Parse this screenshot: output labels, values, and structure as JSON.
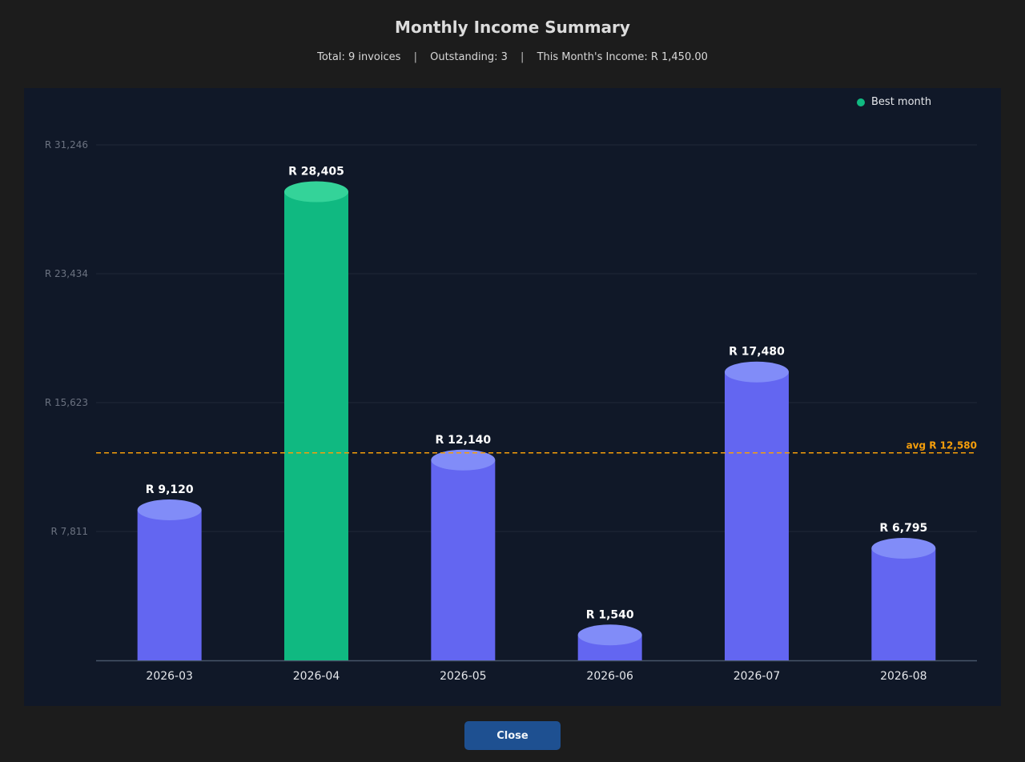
{
  "header": {
    "title": "Monthly Income Summary",
    "total_text": "Total: 9 invoices",
    "separator": "|",
    "outstanding_text": "Outstanding: 3",
    "month_income_text": "This Month's Income: R 1,450.00"
  },
  "footer": {
    "close_label": "Close"
  },
  "colors": {
    "background": "#1c1c1c",
    "panel": "#101828",
    "bar": "#6366f1",
    "bar_top": "#818cf8",
    "best_bar": "#10b981",
    "best_bar_top": "#34d399",
    "average_line": "#f59e0b",
    "gridline": "#1f2937",
    "axis_tick_text": "#6b7280",
    "category_text": "#e5e7eb"
  },
  "chart_data": {
    "type": "bar",
    "title": "Monthly Income Summary",
    "categories": [
      "2026-03",
      "2026-04",
      "2026-05",
      "2026-06",
      "2026-07",
      "2026-08"
    ],
    "values": [
      9120,
      28405,
      12140,
      1540,
      17480,
      6795
    ],
    "value_labels": [
      "R 9,120",
      "R 28,405",
      "R 12,140",
      "R 1,540",
      "R 17,480",
      "R 6,795"
    ],
    "y_ticks": [
      7811,
      15623,
      23434,
      31246
    ],
    "y_tick_labels": [
      "R 7,811",
      "R 15,623",
      "R 23,434",
      "R 31,246"
    ],
    "ylim": [
      0,
      31246
    ],
    "best_index": 1,
    "average": 12580,
    "average_label": "avg R 12,580",
    "legend": [
      {
        "label": "Best month",
        "color": "#10b981"
      }
    ],
    "legend_position": "top-right",
    "grid": true
  }
}
